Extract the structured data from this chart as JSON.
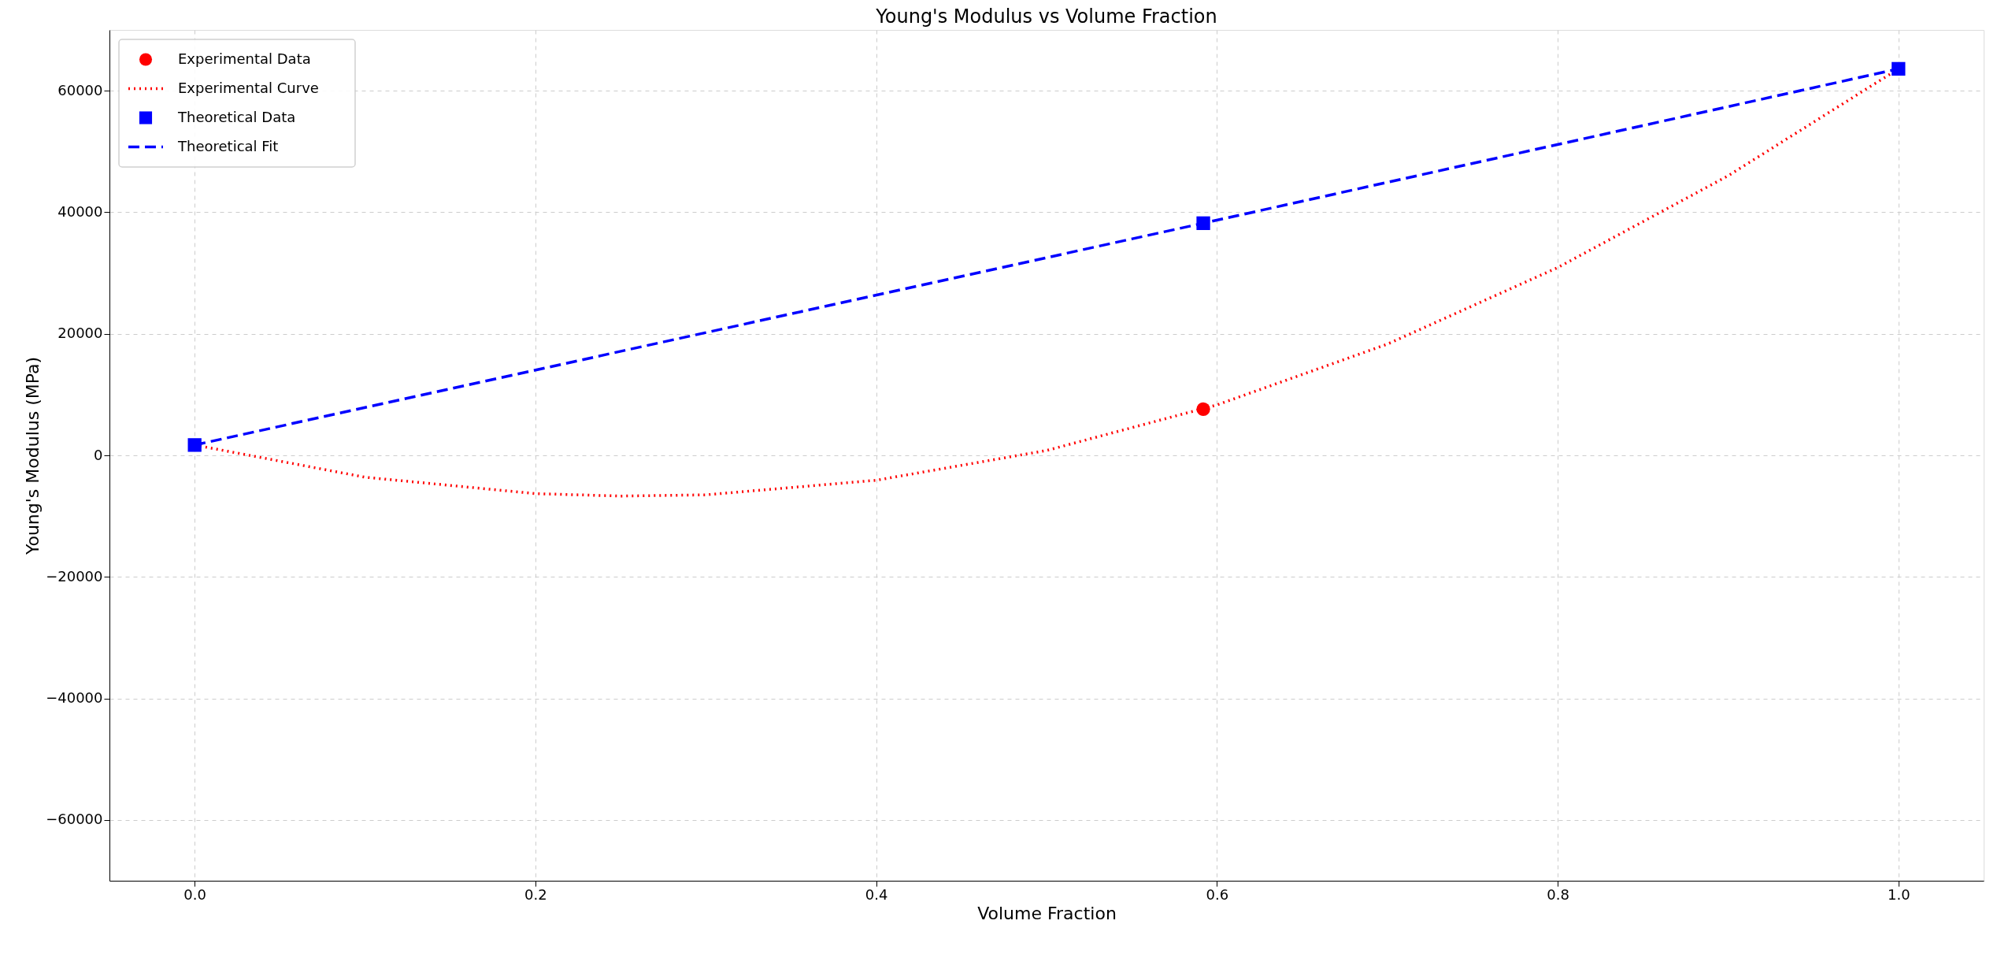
{
  "chart_data": {
    "type": "line",
    "title": "Young's Modulus vs Volume Fraction",
    "xlabel": "Volume Fraction",
    "ylabel": "Young's Modulus (MPa)",
    "series": [
      {
        "name": "Experimental Data",
        "type": "scatter",
        "marker": "circle",
        "color": "#ff0000",
        "x": [
          0.592
        ],
        "values": [
          7600
        ]
      },
      {
        "name": "Experimental Curve",
        "marker": "none",
        "line_style": "dotted",
        "color": "#ff0000",
        "x": [
          0,
          0.1,
          0.2,
          0.25,
          0.3,
          0.4,
          0.5,
          0.6,
          0.7,
          0.8,
          0.9,
          1.0
        ],
        "values": [
          1700,
          -3600,
          -6300,
          -6700,
          -6500,
          -4100,
          800,
          8300,
          18300,
          30900,
          46000,
          63600
        ]
      },
      {
        "name": "Theoretical Data",
        "type": "scatter",
        "marker": "square",
        "color": "#0000ff",
        "x": [
          0,
          0.592,
          1.0
        ],
        "values": [
          1700,
          38200,
          63600
        ]
      },
      {
        "name": "Theoretical Fit",
        "marker": "none",
        "line_style": "dashed",
        "color": "#0000ff",
        "x": [
          0,
          0.592,
          1.0
        ],
        "values": [
          1700,
          38200,
          63600
        ]
      }
    ],
    "xlim": [
      -0.05,
      1.05
    ],
    "ylim": [
      -70000,
      70000
    ],
    "xticks": [
      {
        "value": 0,
        "label": "0.0"
      },
      0.2,
      0.4,
      0.6,
      0.8,
      {
        "value": 1,
        "label": "1.0"
      }
    ],
    "yticks": [
      -60000,
      -40000,
      -20000,
      0,
      20000,
      40000,
      60000
    ],
    "grid": true,
    "legend": "top left"
  }
}
